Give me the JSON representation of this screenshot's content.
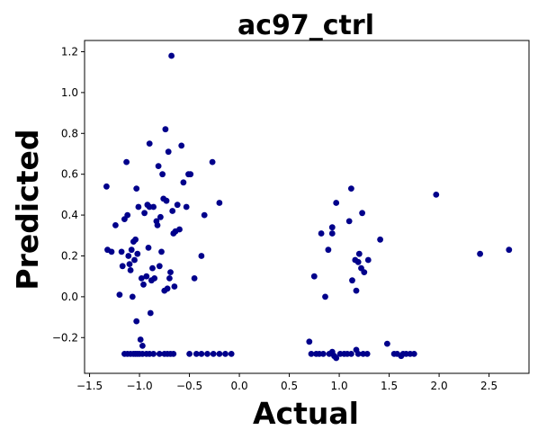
{
  "chart_data": {
    "type": "scatter",
    "title": "ac97_ctrl",
    "xlabel": "Actual",
    "ylabel": "Predicted",
    "xlim": [
      -1.55,
      2.9
    ],
    "ylim": [
      -0.375,
      1.255
    ],
    "xticks": [
      -1.5,
      -1.0,
      -0.5,
      0.0,
      0.5,
      1.0,
      1.5,
      2.0,
      2.5
    ],
    "xtick_labels": [
      "−1.5",
      "−1.0",
      "−0.5",
      "0.0",
      "0.5",
      "1.0",
      "1.5",
      "2.0",
      "2.5"
    ],
    "yticks": [
      -0.2,
      0.0,
      0.2,
      0.4,
      0.6,
      0.8,
      1.0,
      1.2
    ],
    "ytick_labels": [
      "−0.2",
      "0.0",
      "0.2",
      "0.4",
      "0.6",
      "0.8",
      "1.0",
      "1.2"
    ],
    "grid": false,
    "marker_color": "#00008b",
    "series": [
      {
        "points": [
          [
            -1.33,
            0.54
          ],
          [
            -1.32,
            0.23
          ],
          [
            -1.28,
            0.22
          ],
          [
            -1.24,
            0.35
          ],
          [
            -1.2,
            0.01
          ],
          [
            -1.18,
            0.22
          ],
          [
            -1.17,
            0.15
          ],
          [
            -1.15,
            0.38
          ],
          [
            -1.13,
            0.66
          ],
          [
            -1.12,
            0.4
          ],
          [
            -1.11,
            0.2
          ],
          [
            -1.1,
            0.16
          ],
          [
            -1.09,
            0.13
          ],
          [
            -1.08,
            0.23
          ],
          [
            -1.07,
            0.0
          ],
          [
            -1.06,
            0.27
          ],
          [
            -1.05,
            0.18
          ],
          [
            -1.04,
            0.28
          ],
          [
            -1.03,
            0.53
          ],
          [
            -1.03,
            -0.12
          ],
          [
            -1.02,
            0.21
          ],
          [
            -1.01,
            0.44
          ],
          [
            -0.99,
            -0.21
          ],
          [
            -0.98,
            0.09
          ],
          [
            -0.97,
            -0.24
          ],
          [
            -0.96,
            0.06
          ],
          [
            -0.95,
            0.41
          ],
          [
            -0.93,
            0.1
          ],
          [
            -0.92,
            0.45
          ],
          [
            -0.91,
            0.24
          ],
          [
            -0.9,
            0.75
          ],
          [
            -0.9,
            0.44
          ],
          [
            -0.89,
            -0.08
          ],
          [
            -0.88,
            0.08
          ],
          [
            -0.87,
            0.14
          ],
          [
            -0.86,
            0.44
          ],
          [
            -0.85,
            0.09
          ],
          [
            -0.83,
            0.37
          ],
          [
            -0.82,
            0.35
          ],
          [
            -0.81,
            0.64
          ],
          [
            -0.8,
            0.15
          ],
          [
            -0.79,
            0.39
          ],
          [
            -0.78,
            0.22
          ],
          [
            -0.77,
            0.6
          ],
          [
            -0.76,
            0.48
          ],
          [
            -0.75,
            0.03
          ],
          [
            -0.74,
            0.82
          ],
          [
            -0.73,
            0.47
          ],
          [
            -0.72,
            0.04
          ],
          [
            -0.71,
            0.71
          ],
          [
            -0.7,
            0.09
          ],
          [
            -0.69,
            0.12
          ],
          [
            -0.68,
            1.18
          ],
          [
            -0.67,
            0.42
          ],
          [
            -0.66,
            0.31
          ],
          [
            -0.65,
            0.05
          ],
          [
            -0.64,
            0.32
          ],
          [
            -0.62,
            0.45
          ],
          [
            -0.6,
            0.33
          ],
          [
            -0.58,
            0.74
          ],
          [
            -0.56,
            0.56
          ],
          [
            -0.53,
            0.44
          ],
          [
            -0.51,
            0.6
          ],
          [
            -0.49,
            0.6
          ],
          [
            -0.45,
            0.09
          ],
          [
            -0.38,
            0.2
          ],
          [
            -0.35,
            0.4
          ],
          [
            -0.27,
            0.66
          ],
          [
            -0.2,
            0.46
          ],
          [
            0.7,
            -0.22
          ],
          [
            0.75,
            0.1
          ],
          [
            0.82,
            0.31
          ],
          [
            0.86,
            0.0
          ],
          [
            0.89,
            0.23
          ],
          [
            0.93,
            0.31
          ],
          [
            0.93,
            0.34
          ],
          [
            0.97,
            0.46
          ],
          [
            1.1,
            0.37
          ],
          [
            1.12,
            0.53
          ],
          [
            1.13,
            0.08
          ],
          [
            1.16,
            0.18
          ],
          [
            1.17,
            0.03
          ],
          [
            1.19,
            0.17
          ],
          [
            1.2,
            0.21
          ],
          [
            1.22,
            0.14
          ],
          [
            1.23,
            0.41
          ],
          [
            1.25,
            0.12
          ],
          [
            1.29,
            0.18
          ],
          [
            1.41,
            0.28
          ],
          [
            1.48,
            -0.23
          ],
          [
            1.97,
            0.5
          ],
          [
            2.41,
            0.21
          ],
          [
            2.7,
            0.23
          ],
          [
            -1.15,
            -0.28
          ],
          [
            -1.12,
            -0.28
          ],
          [
            -1.09,
            -0.28
          ],
          [
            -1.06,
            -0.28
          ],
          [
            -1.04,
            -0.28
          ],
          [
            -1.02,
            -0.28
          ],
          [
            -1.0,
            -0.28
          ],
          [
            -0.97,
            -0.28
          ],
          [
            -0.93,
            -0.28
          ],
          [
            -0.9,
            -0.28
          ],
          [
            -0.86,
            -0.28
          ],
          [
            -0.8,
            -0.28
          ],
          [
            -0.75,
            -0.28
          ],
          [
            -0.72,
            -0.28
          ],
          [
            -0.69,
            -0.28
          ],
          [
            -0.66,
            -0.28
          ],
          [
            -0.5,
            -0.28
          ],
          [
            -0.43,
            -0.28
          ],
          [
            -0.38,
            -0.28
          ],
          [
            -0.32,
            -0.28
          ],
          [
            -0.26,
            -0.28
          ],
          [
            -0.2,
            -0.28
          ],
          [
            -0.14,
            -0.28
          ],
          [
            -0.08,
            -0.28
          ],
          [
            0.72,
            -0.28
          ],
          [
            0.77,
            -0.28
          ],
          [
            0.8,
            -0.28
          ],
          [
            0.84,
            -0.28
          ],
          [
            0.9,
            -0.28
          ],
          [
            0.93,
            -0.27
          ],
          [
            0.95,
            -0.29
          ],
          [
            0.97,
            -0.3
          ],
          [
            1.01,
            -0.28
          ],
          [
            1.05,
            -0.28
          ],
          [
            1.08,
            -0.28
          ],
          [
            1.12,
            -0.28
          ],
          [
            1.17,
            -0.26
          ],
          [
            1.19,
            -0.28
          ],
          [
            1.24,
            -0.28
          ],
          [
            1.28,
            -0.28
          ],
          [
            1.55,
            -0.28
          ],
          [
            1.58,
            -0.28
          ],
          [
            1.62,
            -0.29
          ],
          [
            1.64,
            -0.28
          ],
          [
            1.67,
            -0.28
          ],
          [
            1.71,
            -0.28
          ],
          [
            1.75,
            -0.28
          ]
        ]
      }
    ]
  }
}
